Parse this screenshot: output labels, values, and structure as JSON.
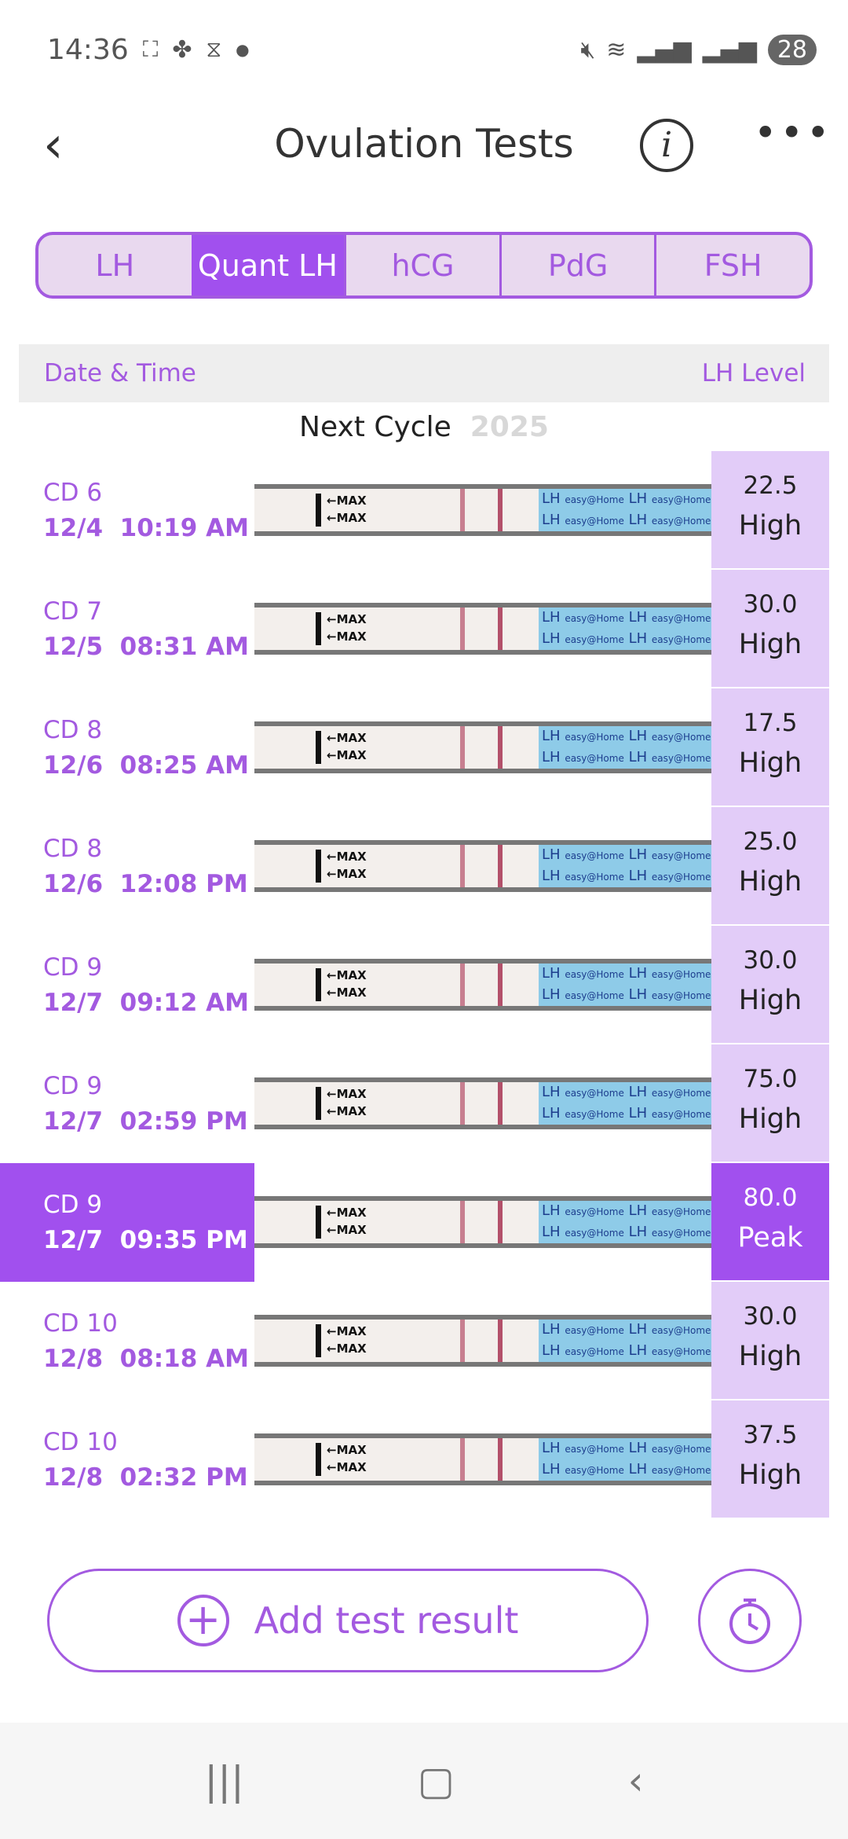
{
  "status_bar": {
    "time": "14:36",
    "battery": "28"
  },
  "header": {
    "title": "Ovulation Tests",
    "back_icon": "chevron-left-icon",
    "info_icon": "info-icon",
    "more_icon": "more-horizontal-icon"
  },
  "tabs": [
    {
      "label": "LH",
      "active": false
    },
    {
      "label": "Quant LH",
      "active": true
    },
    {
      "label": "hCG",
      "active": false
    },
    {
      "label": "PdG",
      "active": false
    },
    {
      "label": "FSH",
      "active": false
    }
  ],
  "table": {
    "col_date": "Date & Time",
    "col_level": "LH Level",
    "section_label": "Next Cycle",
    "section_year": "2025",
    "strip_text": {
      "max": "←MAX",
      "lh": "LH",
      "brand": "easy@Home"
    },
    "rows": [
      {
        "cd": "CD 6",
        "date": "12/4",
        "time": "10:19 AM",
        "value": "22.5",
        "status": "High",
        "selected": false
      },
      {
        "cd": "CD 7",
        "date": "12/5",
        "time": "08:31 AM",
        "value": "30.0",
        "status": "High",
        "selected": false
      },
      {
        "cd": "CD 8",
        "date": "12/6",
        "time": "08:25 AM",
        "value": "17.5",
        "status": "High",
        "selected": false
      },
      {
        "cd": "CD 8",
        "date": "12/6",
        "time": "12:08 PM",
        "value": "25.0",
        "status": "High",
        "selected": false
      },
      {
        "cd": "CD 9",
        "date": "12/7",
        "time": "09:12 AM",
        "value": "30.0",
        "status": "High",
        "selected": false
      },
      {
        "cd": "CD 9",
        "date": "12/7",
        "time": "02:59 PM",
        "value": "75.0",
        "status": "High",
        "selected": false
      },
      {
        "cd": "CD 9",
        "date": "12/7",
        "time": "09:35 PM",
        "value": "80.0",
        "status": "Peak",
        "selected": true
      },
      {
        "cd": "CD 10",
        "date": "12/8",
        "time": "08:18 AM",
        "value": "30.0",
        "status": "High",
        "selected": false
      },
      {
        "cd": "CD 10",
        "date": "12/8",
        "time": "02:32 PM",
        "value": "37.5",
        "status": "High",
        "selected": false
      }
    ]
  },
  "actions": {
    "add_label": "Add test result",
    "timer_icon": "stopwatch-icon"
  },
  "colors": {
    "accent": "#a150ee",
    "level_bg": "#e2ccf8"
  }
}
